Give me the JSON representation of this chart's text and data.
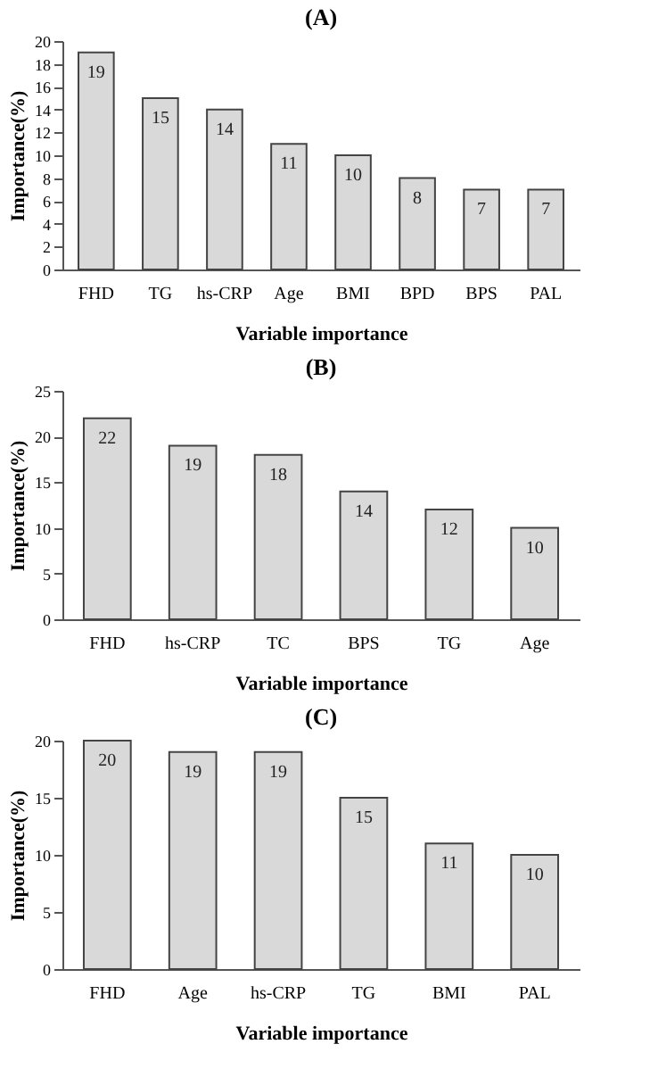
{
  "chart_data": [
    {
      "type": "bar",
      "title": "(A)",
      "xlabel": "Variable importance",
      "ylabel": "Importance(%)",
      "categories": [
        "FHD",
        "TG",
        "hs-CRP",
        "Age",
        "BMI",
        "BPD",
        "BPS",
        "PAL"
      ],
      "values": [
        19,
        15,
        14,
        11,
        10,
        8,
        7,
        7
      ],
      "color": "#d9d9d9",
      "ylim": [
        0,
        20
      ],
      "yticks": [
        0,
        2,
        4,
        6,
        8,
        10,
        12,
        14,
        16,
        18,
        20
      ],
      "data_labels": true,
      "grid": false
    },
    {
      "type": "bar",
      "title": "(B)",
      "xlabel": "Variable importance",
      "ylabel": "Importance(%)",
      "categories": [
        "FHD",
        "hs-CRP",
        "TC",
        "BPS",
        "TG",
        "Age"
      ],
      "values": [
        22,
        19,
        18,
        14,
        12,
        10
      ],
      "color": "#d9d9d9",
      "ylim": [
        0,
        25
      ],
      "yticks": [
        0,
        5,
        10,
        15,
        20,
        25
      ],
      "data_labels": true,
      "grid": false
    },
    {
      "type": "bar",
      "title": "(C)",
      "xlabel": "Variable importance",
      "ylabel": "Importance(%)",
      "categories": [
        "FHD",
        "Age",
        "hs-CRP",
        "TG",
        "BMI",
        "PAL"
      ],
      "values": [
        20,
        19,
        19,
        15,
        11,
        10
      ],
      "color": "#d9d9d9",
      "ylim": [
        0,
        20
      ],
      "yticks": [
        0,
        5,
        10,
        15,
        20
      ],
      "data_labels": true,
      "grid": false
    }
  ]
}
